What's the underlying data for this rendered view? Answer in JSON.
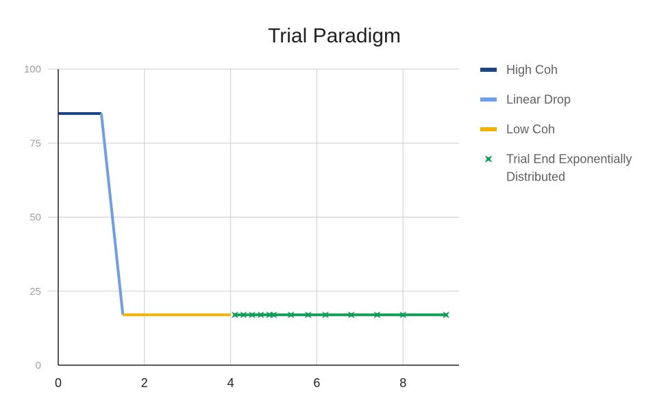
{
  "chart_data": {
    "type": "line",
    "title": "Trial Paradigm",
    "xlabel": "",
    "ylabel": "",
    "xlim": [
      0,
      9.3
    ],
    "ylim": [
      0,
      100
    ],
    "x_ticks": [
      0,
      2,
      4,
      6,
      8
    ],
    "y_ticks": [
      0,
      25,
      50,
      75,
      100
    ],
    "grid": true,
    "legend_position": "right",
    "series": [
      {
        "name": "High Coh",
        "color": "#1c4587",
        "marker": "none",
        "x": [
          0,
          1
        ],
        "y": [
          85,
          85
        ]
      },
      {
        "name": "Linear Drop",
        "color": "#6d9eeb",
        "marker": "none",
        "x": [
          1,
          1.5
        ],
        "y": [
          85,
          17
        ]
      },
      {
        "name": "Low Coh",
        "color": "#f1b300",
        "marker": "none",
        "x": [
          1.5,
          4
        ],
        "y": [
          17,
          17
        ]
      },
      {
        "name": "Trial End Exponentially Distributed",
        "color": "#0f9d58",
        "marker": "star",
        "x": [
          4.1,
          4.3,
          4.5,
          4.7,
          4.9,
          5.0,
          5.4,
          5.8,
          6.2,
          6.8,
          7.4,
          8.0,
          9.0
        ],
        "y": [
          17,
          17,
          17,
          17,
          17,
          17,
          17,
          17,
          17,
          17,
          17,
          17,
          17
        ]
      }
    ]
  }
}
